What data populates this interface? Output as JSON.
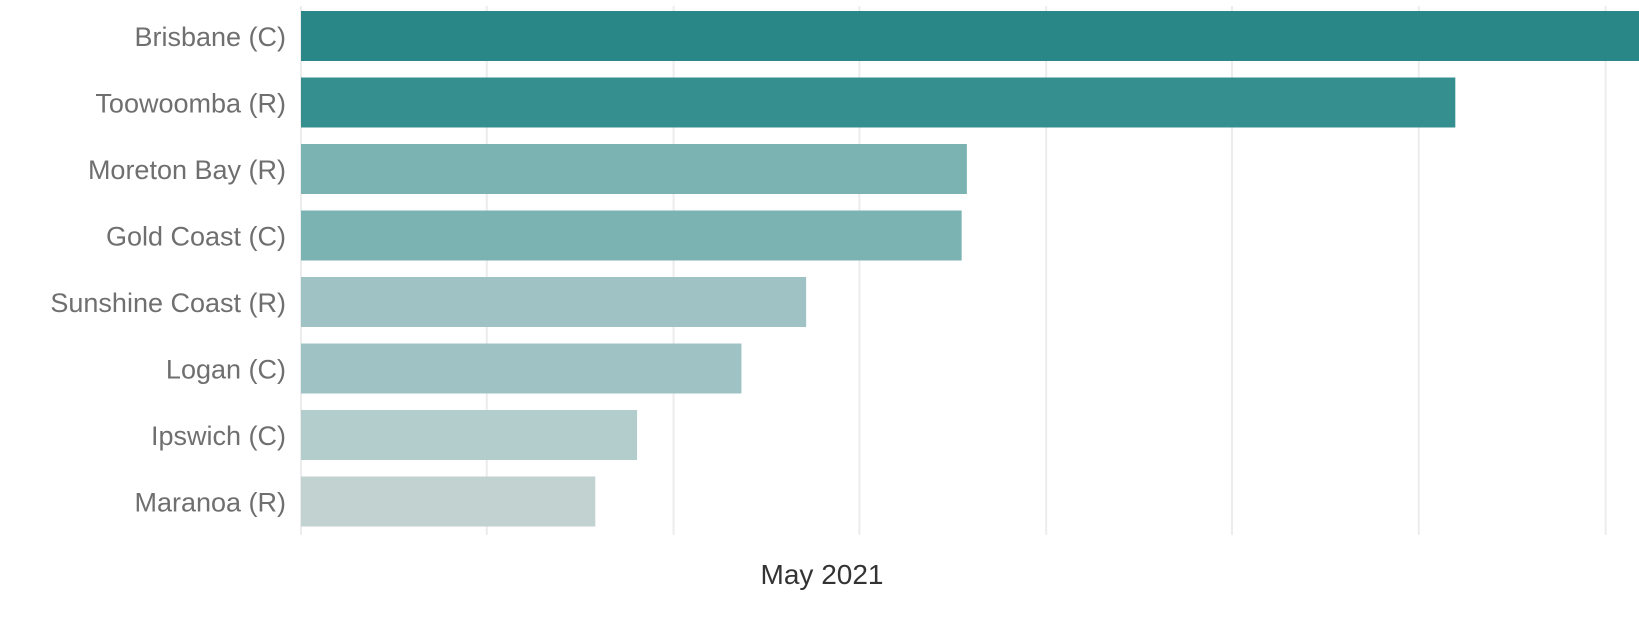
{
  "chart_data": {
    "type": "bar",
    "orientation": "horizontal",
    "categories": [
      "Brisbane (C)",
      "Toowoomba (R)",
      "Moreton Bay (R)",
      "Gold Coast (C)",
      "Sunshine Coast (R)",
      "Logan (C)",
      "Ipswich (C)",
      "Maranoa (R)"
    ],
    "values": [
      1282,
      1106,
      638,
      633,
      484,
      422,
      322,
      282
    ],
    "colors": [
      "#2a8787",
      "#368f8f",
      "#7bb3b3",
      "#7bb3b3",
      "#9fc3c4",
      "#9fc3c4",
      "#b3cdcd",
      "#c1d2d1"
    ],
    "xlabel": "May 2021",
    "ylabel": "",
    "title": "",
    "xlim": [
      0,
      1282
    ],
    "x_gridlines": [
      0,
      178,
      357,
      535,
      714,
      892,
      1071,
      1250
    ],
    "grid": true,
    "legend": "none",
    "tick_labels_shown": false
  }
}
